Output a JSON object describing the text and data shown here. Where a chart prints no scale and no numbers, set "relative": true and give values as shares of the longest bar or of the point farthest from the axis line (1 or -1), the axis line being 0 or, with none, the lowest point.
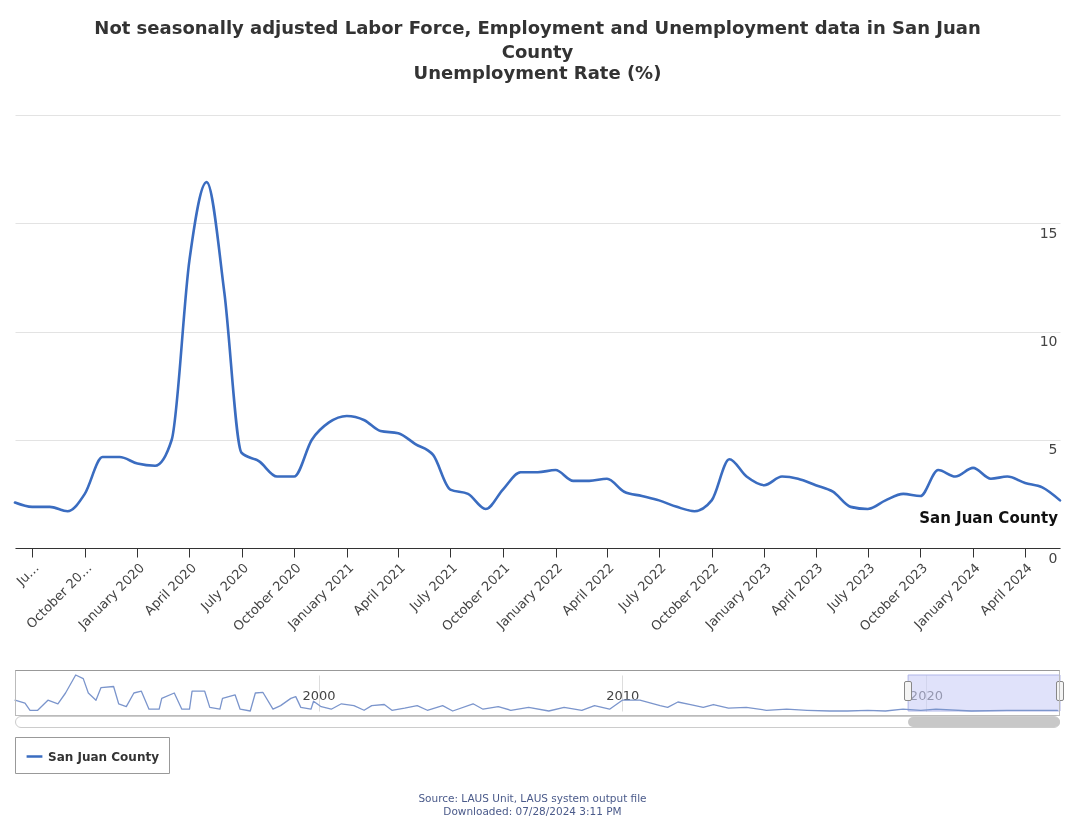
{
  "chart_data": [
    {
      "type": "line",
      "title": "Not seasonally adjusted Labor Force, Employment and Unemployment data in San Juan County",
      "subtitle": "Unemployment Rate (%)",
      "x": [
        "2019-06",
        "2019-07",
        "2019-08",
        "2019-09",
        "2019-10",
        "2019-11",
        "2019-12",
        "2020-01",
        "2020-02",
        "2020-03",
        "2020-04",
        "2020-05",
        "2020-06",
        "2020-07",
        "2020-08",
        "2020-09",
        "2020-10",
        "2020-11",
        "2020-12",
        "2021-01",
        "2021-02",
        "2021-03",
        "2021-04",
        "2021-05",
        "2021-06",
        "2021-07",
        "2021-08",
        "2021-09",
        "2021-10",
        "2021-11",
        "2021-12",
        "2022-01",
        "2022-02",
        "2022-03",
        "2022-04",
        "2022-05",
        "2022-06",
        "2022-07",
        "2022-08",
        "2022-09",
        "2022-10",
        "2022-11",
        "2022-12",
        "2023-01",
        "2023-02",
        "2023-03",
        "2023-04",
        "2023-05",
        "2023-06",
        "2023-07",
        "2023-08",
        "2023-09",
        "2023-10",
        "2023-11",
        "2023-12",
        "2024-01",
        "2024-02",
        "2024-03",
        "2024-04",
        "2024-05",
        "2024-06"
      ],
      "series": [
        {
          "name": "San Juan County",
          "color": "#3a6cc0",
          "values": [
            2.1,
            1.9,
            1.9,
            1.7,
            2.5,
            4.2,
            4.2,
            3.9,
            3.8,
            5.0,
            13.3,
            16.9,
            11.8,
            4.4,
            4.0,
            3.3,
            3.3,
            5.0,
            5.8,
            6.1,
            5.9,
            5.4,
            5.3,
            4.8,
            4.3,
            2.7,
            2.5,
            1.8,
            2.7,
            3.5,
            3.5,
            3.6,
            3.1,
            3.1,
            3.2,
            2.6,
            2.4,
            2.2,
            1.9,
            1.7,
            2.2,
            4.1,
            3.3,
            2.9,
            3.3,
            3.2,
            2.9,
            2.6,
            1.9,
            1.8,
            2.2,
            2.5,
            2.4,
            3.6,
            3.3,
            3.7,
            3.2,
            3.3,
            3.0,
            2.8,
            2.2
          ]
        }
      ],
      "xlim": [
        "2019-06",
        "2024-06"
      ],
      "xticks": [
        {
          "value": "2019-07",
          "label": "Ju…"
        },
        {
          "value": "2019-10",
          "label": "October 20…"
        },
        {
          "value": "2020-01",
          "label": "January 2020"
        },
        {
          "value": "2020-04",
          "label": "April 2020"
        },
        {
          "value": "2020-07",
          "label": "July 2020"
        },
        {
          "value": "2020-10",
          "label": "October 2020"
        },
        {
          "value": "2021-01",
          "label": "January 2021"
        },
        {
          "value": "2021-04",
          "label": "April 2021"
        },
        {
          "value": "2021-07",
          "label": "July 2021"
        },
        {
          "value": "2021-10",
          "label": "October 2021"
        },
        {
          "value": "2022-01",
          "label": "January 2022"
        },
        {
          "value": "2022-04",
          "label": "April 2022"
        },
        {
          "value": "2022-07",
          "label": "July 2022"
        },
        {
          "value": "2022-10",
          "label": "October 2022"
        },
        {
          "value": "2023-01",
          "label": "January 2023"
        },
        {
          "value": "2023-04",
          "label": "April 2023"
        },
        {
          "value": "2023-07",
          "label": "July 2023"
        },
        {
          "value": "2023-10",
          "label": "October 2023"
        },
        {
          "value": "2024-01",
          "label": "January 2024"
        },
        {
          "value": "2024-04",
          "label": "April 2024"
        }
      ],
      "ylim": [
        0,
        20
      ],
      "yticks": [
        0,
        5,
        10,
        15,
        {
          "value": 20,
          "label": null
        }
      ],
      "grid": "y",
      "legend": "bottom",
      "annotations": [
        "Source: LAUS Unit, LAUS system output file",
        "Downloaded: 07/28/2024 3:11 PM"
      ]
    },
    {
      "type": "line",
      "relative": true,
      "tick_labels": "x",
      "grid": "x",
      "xlim": [
        "1990-01",
        "2024-06"
      ],
      "xticks": [
        "2000",
        "2010",
        "2020"
      ],
      "bands": [
        {
          "axis": "x",
          "from": "2019-06",
          "to": "2024-06",
          "color": "#ccd0f8"
        }
      ],
      "x": [
        "1990-01",
        "1990-05",
        "1990-07",
        "1990-10",
        "1991-02",
        "1991-06",
        "1991-09",
        "1992-01",
        "1992-04",
        "1992-06",
        "1992-09",
        "1992-11",
        "1993-04",
        "1993-06",
        "1993-09",
        "1993-12",
        "1994-03",
        "1994-06",
        "1994-10",
        "1994-11",
        "1995-04",
        "1995-07",
        "1995-10",
        "1995-11",
        "1996-04",
        "1996-06",
        "1996-10",
        "1996-11",
        "1997-04",
        "1997-06",
        "1997-10",
        "1997-12",
        "1998-03",
        "1998-07",
        "1998-10",
        "1999-02",
        "1999-04",
        "1999-06",
        "1999-10",
        "1999-11",
        "2000-02",
        "2000-06",
        "2000-10",
        "2001-03",
        "2001-07",
        "2001-10",
        "2002-03",
        "2002-06",
        "2002-11",
        "2003-04",
        "2003-08",
        "2004-02",
        "2004-06",
        "2005-02",
        "2005-06",
        "2005-12",
        "2006-05",
        "2006-12",
        "2007-08",
        "2008-02",
        "2008-09",
        "2009-02",
        "2009-08",
        "2010-01",
        "2010-08",
        "2011-04",
        "2011-07",
        "2011-11",
        "2012-04",
        "2012-09",
        "2013-01",
        "2013-07",
        "2014-02",
        "2014-10",
        "2015-06",
        "2016-02",
        "2016-11",
        "2017-06",
        "2018-02",
        "2018-09",
        "2019-04",
        "2019-11",
        "2020-05",
        "2021-07",
        "2022-09",
        "2024-05"
      ],
      "series": [
        {
          "color": "#7b95cc",
          "values": [
            0.3,
            0.22,
            0.02,
            0.02,
            0.3,
            0.2,
            0.5,
            1,
            0.9,
            0.5,
            0.3,
            0.65,
            0.68,
            0.2,
            0.12,
            0.5,
            0.55,
            0.05,
            0.05,
            0.35,
            0.5,
            0.05,
            0.05,
            0.55,
            0.55,
            0.1,
            0.05,
            0.35,
            0.45,
            0.05,
            0,
            0.5,
            0.52,
            0.05,
            0.15,
            0.35,
            0.4,
            0.1,
            0.05,
            0.27,
            0.12,
            0.05,
            0.2,
            0.15,
            0.02,
            0.15,
            0.18,
            0.02,
            0.08,
            0.15,
            0.02,
            0.15,
            0,
            0.2,
            0.05,
            0.12,
            0.02,
            0.1,
            0,
            0.1,
            0.02,
            0.15,
            0.05,
            0.3,
            0.3,
            0.15,
            0.1,
            0.25,
            0.18,
            0.1,
            0.18,
            0.08,
            0.1,
            0.02,
            0.05,
            0.02,
            0,
            0,
            0.02,
            0,
            0.05,
            0.02,
            0.05,
            0,
            0.02,
            0.02
          ]
        }
      ]
    }
  ]
}
